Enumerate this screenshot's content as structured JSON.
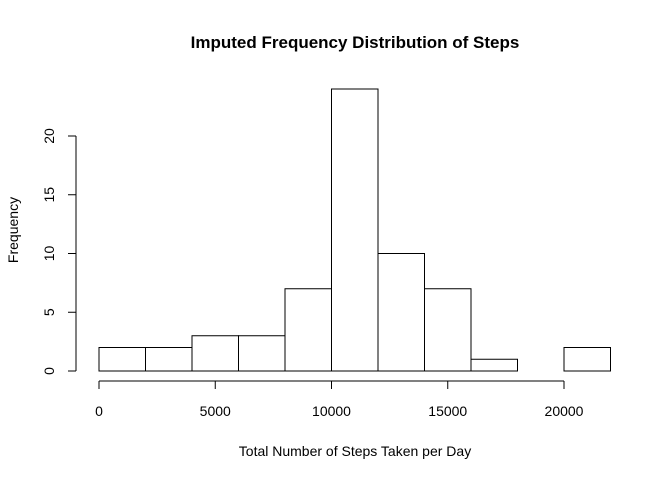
{
  "chart_data": {
    "type": "bar",
    "subtype": "histogram",
    "title": "Imputed Frequency Distribution of Steps",
    "xlabel": "Total Number of Steps Taken per Day",
    "ylabel": "Frequency",
    "bin_edges": [
      0,
      2000,
      4000,
      6000,
      8000,
      10000,
      12000,
      14000,
      16000,
      18000,
      20000,
      22000
    ],
    "values": [
      2,
      2,
      3,
      3,
      7,
      24,
      10,
      7,
      1,
      0,
      2
    ],
    "xlim": [
      0,
      22000
    ],
    "ylim": [
      0,
      24
    ],
    "x_ticks": [
      0,
      5000,
      10000,
      15000,
      20000
    ],
    "x_tick_labels": [
      "0",
      "5000",
      "10000",
      "15000",
      "20000"
    ],
    "y_ticks": [
      0,
      5,
      10,
      15,
      20
    ],
    "y_tick_labels": [
      "0",
      "5",
      "10",
      "15",
      "20"
    ],
    "grid": false,
    "colors": {
      "bar_fill": "#ffffff",
      "bar_stroke": "#000000"
    }
  }
}
